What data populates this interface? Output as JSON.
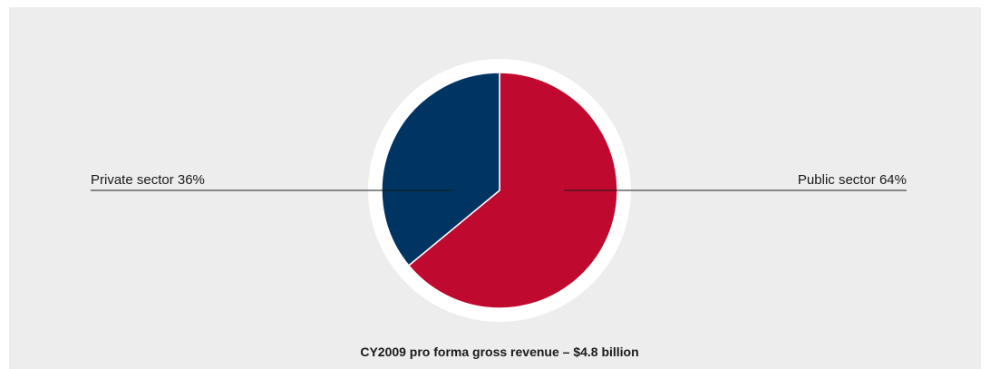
{
  "chart_data": {
    "type": "pie",
    "title": "CY2009 pro forma gross revenue – $4.8 billion",
    "categories": [
      "Public sector",
      "Private sector"
    ],
    "values": [
      64,
      36
    ],
    "value_labels": [
      "64%",
      "36%"
    ],
    "colors": [
      "#c0092e",
      "#003462"
    ]
  }
}
